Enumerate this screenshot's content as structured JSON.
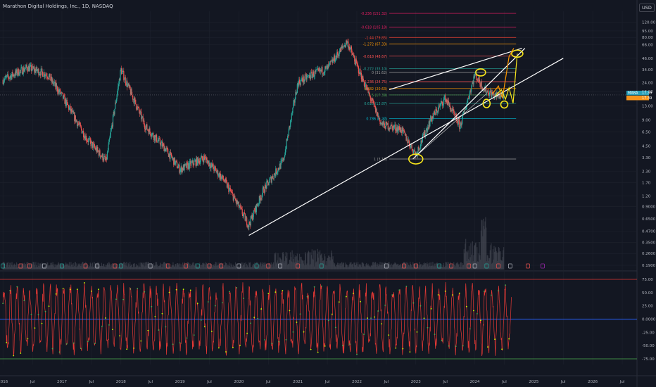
{
  "header": {
    "title": "Marathon Digital Holdings, Inc., 1D, NASDAQ",
    "currency": "USD"
  },
  "colors": {
    "background": "#131722",
    "grid": "#1e222d",
    "up": "#26a69a",
    "down": "#ef5350",
    "trendline": "#ffffff",
    "highlight": "#f7e51b",
    "projection": "#ff9800",
    "price_label": "#2a9fb8",
    "price_label_alt": "#f7931a",
    "oscillator": "#e53935",
    "oscillator_mid": "#2962ff",
    "oscillator_low": "#4caf50"
  },
  "chart_data": [
    {
      "type": "line",
      "scale": "log",
      "series": [
        {
          "x": [
            "2016-01",
            "2016-06",
            "2016-10",
            "2017-01",
            "2017-06",
            "2017-10",
            "2018-01",
            "2018-06",
            "2018-10",
            "2019-01",
            "2019-06",
            "2019-10",
            "2020-01",
            "2020-03",
            "2020-06",
            "2020-10",
            "2021-01",
            "2021-04",
            "2021-07",
            "2021-11",
            "2022-01",
            "2022-06",
            "2022-10",
            "2023-01",
            "2023-04",
            "2023-07",
            "2023-10",
            "2024-01",
            "2024-03",
            "2024-05",
            "2024-07"
          ],
          "values": [
            26,
            36,
            30,
            17,
            5.5,
            3.0,
            34,
            7.5,
            4.2,
            2.4,
            3.3,
            1.8,
            0.9,
            0.55,
            1.4,
            3.0,
            24,
            30,
            35,
            72,
            38,
            8,
            7,
            3.6,
            9,
            16,
            7.5,
            30,
            20,
            17,
            17.39
          ]
        }
      ],
      "x_ticks": [
        "2016",
        "Jul",
        "2017",
        "Jul",
        "2018",
        "Jul",
        "2019",
        "Jul",
        "2020",
        "Jul",
        "2021",
        "Jul",
        "2022",
        "Jul",
        "2023",
        "Jul",
        "2024",
        "Jul",
        "2025",
        "Jul",
        "2026",
        "Jul"
      ],
      "y_ticks": [
        "120.00",
        "95.00",
        "80.00",
        "66.00",
        "46.00",
        "34.00",
        "24.00",
        "19.00",
        "13.00",
        "9.00",
        "6.50",
        "4.50",
        "3.30",
        "2.30",
        "1.70",
        "1.20",
        "0.9000",
        "0.6500",
        "0.4700",
        "0.3500",
        "0.2600",
        "0.1900"
      ],
      "last_price_labels": [
        "17.39",
        "17.39"
      ],
      "symbol_label": "MARA",
      "fib_levels": [
        {
          "label": "-0.236 (151.32)",
          "value": 151.32
        },
        {
          "label": "-0.618 (105.18)",
          "value": 105.18
        },
        {
          "label": "-1.44 (79.85)",
          "value": 79.85
        },
        {
          "label": "-1.272 (67.33)",
          "value": 67.33
        },
        {
          "label": "-0.618 (48.67)",
          "value": 48.67
        },
        {
          "label": "-0.272 (35.10)",
          "value": 35.1
        },
        {
          "label": "0 (31.62)",
          "value": 31.62
        },
        {
          "label": "0.236 (24.75)",
          "value": 24.75
        },
        {
          "label": "0.382 (20.63)",
          "value": 20.63
        },
        {
          "label": "0.5 (17.39)",
          "value": 17.39
        },
        {
          "label": "0.618 (13.87)",
          "value": 13.87
        },
        {
          "label": "0.786 (9.27)",
          "value": 9.27
        },
        {
          "label": "1 (3.18)",
          "value": 3.18
        }
      ]
    },
    {
      "type": "line",
      "y_ticks": [
        "75.00",
        "50.00",
        "25.00",
        "0.0000",
        "-25.00",
        "-50.00",
        "-75.00"
      ],
      "levels": [
        75,
        0,
        -75
      ]
    }
  ]
}
